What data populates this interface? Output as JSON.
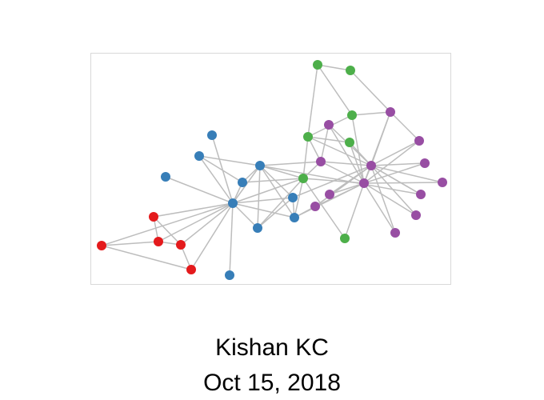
{
  "author": "Kishan KC",
  "date": "Oct 15, 2018",
  "graph": {
    "edge_color": "#bdbdbd",
    "groups": {
      "red": "#e41a1c",
      "blue": "#377eb8",
      "green": "#4daf4a",
      "purple": "#984ea3"
    },
    "nodes": [
      {
        "id": "r1",
        "group": "red"
      },
      {
        "id": "r2",
        "group": "red"
      },
      {
        "id": "r3",
        "group": "red"
      },
      {
        "id": "r4",
        "group": "red"
      },
      {
        "id": "r5",
        "group": "red"
      },
      {
        "id": "b1",
        "group": "blue"
      },
      {
        "id": "b2",
        "group": "blue"
      },
      {
        "id": "b3",
        "group": "blue"
      },
      {
        "id": "b4",
        "group": "blue"
      },
      {
        "id": "b5",
        "group": "blue"
      },
      {
        "id": "b6",
        "group": "blue"
      },
      {
        "id": "b7",
        "group": "blue"
      },
      {
        "id": "b8",
        "group": "blue"
      },
      {
        "id": "b9",
        "group": "blue"
      },
      {
        "id": "b10",
        "group": "blue"
      },
      {
        "id": "g1",
        "group": "green"
      },
      {
        "id": "g2",
        "group": "green"
      },
      {
        "id": "g3",
        "group": "green"
      },
      {
        "id": "g4",
        "group": "green"
      },
      {
        "id": "g5",
        "group": "green"
      },
      {
        "id": "g6",
        "group": "green"
      },
      {
        "id": "g7",
        "group": "green"
      },
      {
        "id": "p1",
        "group": "purple"
      },
      {
        "id": "p2",
        "group": "purple"
      },
      {
        "id": "p3",
        "group": "purple"
      },
      {
        "id": "p4",
        "group": "purple"
      },
      {
        "id": "p5",
        "group": "purple"
      },
      {
        "id": "p6",
        "group": "purple"
      },
      {
        "id": "p7",
        "group": "purple"
      },
      {
        "id": "p8",
        "group": "purple"
      },
      {
        "id": "p9",
        "group": "purple"
      },
      {
        "id": "p10",
        "group": "purple"
      },
      {
        "id": "p11",
        "group": "purple"
      },
      {
        "id": "p12",
        "group": "purple"
      },
      {
        "id": "p13",
        "group": "purple"
      }
    ],
    "edges": [
      [
        "r1",
        "r2"
      ],
      [
        "r1",
        "r3"
      ],
      [
        "r1",
        "b1"
      ],
      [
        "r2",
        "r3"
      ],
      [
        "r2",
        "r4"
      ],
      [
        "r2",
        "b1"
      ],
      [
        "r3",
        "b1"
      ],
      [
        "r4",
        "r5"
      ],
      [
        "r4",
        "b1"
      ],
      [
        "r5",
        "b1"
      ],
      [
        "r3",
        "r5"
      ],
      [
        "b1",
        "b2"
      ],
      [
        "b1",
        "b3"
      ],
      [
        "b1",
        "b4"
      ],
      [
        "b1",
        "b5"
      ],
      [
        "b1",
        "b6"
      ],
      [
        "b1",
        "b7"
      ],
      [
        "b1",
        "b8"
      ],
      [
        "b1",
        "b9"
      ],
      [
        "b1",
        "b10"
      ],
      [
        "b1",
        "g6"
      ],
      [
        "b3",
        "b4"
      ],
      [
        "b4",
        "b7"
      ],
      [
        "b4",
        "b8"
      ],
      [
        "b4",
        "b9"
      ],
      [
        "b4",
        "b10"
      ],
      [
        "b4",
        "g6"
      ],
      [
        "b7",
        "g6"
      ],
      [
        "b8",
        "b9"
      ],
      [
        "b9",
        "g6"
      ],
      [
        "b10",
        "b8"
      ],
      [
        "b3",
        "b7"
      ],
      [
        "b8",
        "p4"
      ],
      [
        "b9",
        "p8"
      ],
      [
        "b9",
        "p6"
      ],
      [
        "b4",
        "p3"
      ],
      [
        "b4",
        "p10"
      ],
      [
        "g1",
        "g2"
      ],
      [
        "g1",
        "g3"
      ],
      [
        "g1",
        "g4"
      ],
      [
        "g2",
        "p1"
      ],
      [
        "g3",
        "p1"
      ],
      [
        "g3",
        "g4"
      ],
      [
        "g4",
        "g5"
      ],
      [
        "g4",
        "g6"
      ],
      [
        "g4",
        "p3"
      ],
      [
        "g4",
        "p4"
      ],
      [
        "g5",
        "p4"
      ],
      [
        "g5",
        "p6"
      ],
      [
        "g6",
        "p6"
      ],
      [
        "g6",
        "p3"
      ],
      [
        "g6",
        "g7"
      ],
      [
        "g6",
        "b10"
      ],
      [
        "g7",
        "p6"
      ],
      [
        "p1",
        "p4"
      ],
      [
        "p1",
        "p5"
      ],
      [
        "p1",
        "p6"
      ],
      [
        "p2",
        "p4"
      ],
      [
        "p2",
        "p6"
      ],
      [
        "p3",
        "p4"
      ],
      [
        "p3",
        "p6"
      ],
      [
        "p4",
        "p5"
      ],
      [
        "p4",
        "p6"
      ],
      [
        "p4",
        "p7"
      ],
      [
        "p4",
        "p8"
      ],
      [
        "p4",
        "p9"
      ],
      [
        "p4",
        "p10"
      ],
      [
        "p4",
        "p11"
      ],
      [
        "p4",
        "p12"
      ],
      [
        "p4",
        "p13"
      ],
      [
        "p5",
        "p6"
      ],
      [
        "p6",
        "p7"
      ],
      [
        "p6",
        "p8"
      ],
      [
        "p6",
        "p9"
      ],
      [
        "p6",
        "p11"
      ],
      [
        "p6",
        "p12"
      ],
      [
        "p6",
        "p13"
      ],
      [
        "p8",
        "p4"
      ],
      [
        "p2",
        "p3"
      ],
      [
        "g3",
        "p6"
      ],
      [
        "p10",
        "p4"
      ]
    ]
  }
}
